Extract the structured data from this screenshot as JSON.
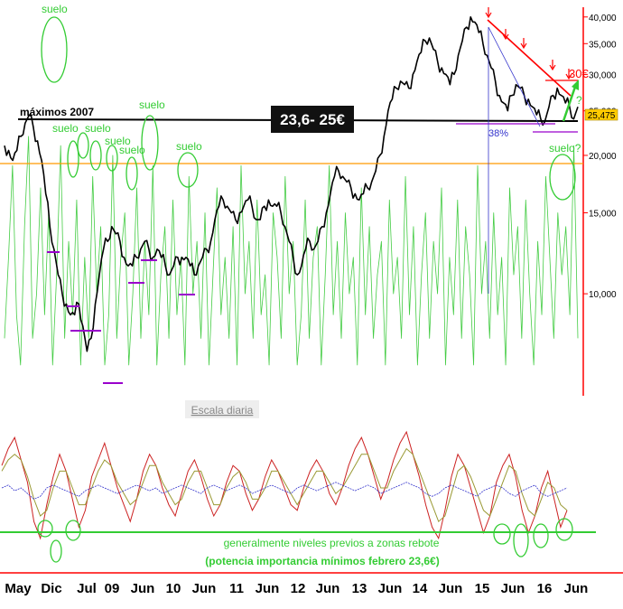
{
  "chart_data": {
    "type": "line",
    "title": "",
    "scale_label": "Escala diaria",
    "y_axis": {
      "position": "right",
      "scale": "log",
      "ticks": [
        "40,000",
        "35,000",
        "30,000",
        "25,000",
        "20,000",
        "15,000",
        "10,000"
      ],
      "tick_values": [
        40,
        35,
        30,
        25,
        20,
        15,
        10
      ],
      "range": [
        6,
        42
      ]
    },
    "x_axis": {
      "tick_labels": [
        "May",
        "Dic",
        "Jul",
        "09",
        "Jun",
        "10",
        "Jun",
        "11",
        "Jun",
        "12",
        "Jun",
        "13",
        "Jun",
        "14",
        "Jun",
        "15",
        "Jun",
        "16",
        "Jun"
      ]
    },
    "price_badge": "25,475",
    "series": [
      {
        "color": "#000000",
        "values": [
          21,
          20.5,
          19.5,
          20.5,
          22,
          23.5,
          24.5,
          23,
          21.5,
          19.5,
          16.5,
          14,
          12.5,
          11,
          10,
          9.5,
          9,
          9,
          9.5,
          8.5,
          7.5,
          8,
          9.5,
          11,
          12.5,
          13,
          14,
          13.5,
          13,
          12,
          11.5,
          11.5,
          12,
          12.5,
          13,
          12.5,
          12,
          12.5,
          12,
          11.5,
          11,
          11.5,
          12,
          12,
          12,
          11.5,
          11,
          11.5,
          12,
          12.5,
          13,
          14.5,
          15.5,
          16,
          15.5,
          15,
          14.5,
          15,
          15.5,
          16,
          15.5,
          14.5,
          14.5,
          15.5,
          16,
          15.5,
          15.5,
          15,
          14,
          13,
          12,
          11,
          11.5,
          12.5,
          13,
          12.5,
          13,
          14,
          15,
          16.5,
          18,
          18.5,
          18,
          17.5,
          17,
          16.5,
          16,
          16.5,
          17,
          17.5,
          18.5,
          20,
          22,
          25,
          26.5,
          28,
          29,
          28.5,
          28,
          30,
          32,
          33.5,
          35.5,
          36,
          34,
          32,
          31,
          30,
          28.5,
          30,
          33,
          35.5,
          38,
          40,
          39,
          37,
          35,
          33,
          31,
          29,
          27,
          26,
          25,
          27,
          28.5,
          28,
          27,
          26.5,
          25.5,
          24.5,
          24,
          23.7,
          25.5,
          27,
          28,
          27,
          26,
          25.5,
          24,
          25.5
        ]
      },
      {
        "color": "#44cc44",
        "values": [
          8,
          12,
          19,
          9,
          7,
          14,
          22,
          8,
          10,
          17,
          9,
          15,
          7,
          11,
          21,
          8,
          13,
          9,
          16,
          7,
          12,
          8,
          18,
          10,
          14,
          7,
          9,
          20,
          8,
          12,
          15,
          7,
          10,
          17,
          8,
          13,
          9,
          19,
          7,
          11,
          14,
          8,
          16,
          9,
          12,
          7,
          18,
          10,
          13,
          8,
          15,
          7,
          11,
          17,
          9,
          12,
          8,
          14,
          7,
          19,
          10,
          13,
          8,
          16,
          9,
          11,
          7,
          15,
          12,
          8,
          18,
          10,
          13,
          7,
          9,
          16,
          8,
          12,
          14,
          7,
          11,
          19,
          9,
          13,
          8,
          15,
          10,
          12,
          7,
          17,
          9,
          14,
          8,
          11,
          13,
          7,
          16,
          10,
          12,
          8,
          18,
          9,
          14,
          7,
          11,
          15,
          8,
          13,
          10,
          17,
          7,
          12,
          9,
          16,
          8,
          14,
          11,
          7,
          19,
          10,
          13,
          8,
          15,
          9,
          12,
          7,
          17,
          11,
          14,
          8,
          16,
          10,
          7,
          13,
          9,
          18,
          12,
          8,
          15,
          11,
          14,
          9,
          21,
          8
        ]
      }
    ],
    "oscillator": {
      "series": [
        {
          "color": "#cc2222",
          "values": [
            0.4,
            0.7,
            0.9,
            0.5,
            0.1,
            -0.6,
            -0.9,
            -0.3,
            0.2,
            0.6,
            0.3,
            -0.2,
            -0.7,
            -0.4,
            0.2,
            0.5,
            0.8,
            0.4,
            0,
            -0.3,
            -0.6,
            -0.2,
            0.3,
            0.6,
            0.4,
            0,
            -0.3,
            -0.5,
            -0.1,
            0.3,
            0.5,
            0.2,
            -0.2,
            -0.5,
            -0.3,
            0.1,
            0.4,
            0.3,
            -0.1,
            -0.4,
            -0.2,
            0.2,
            0.5,
            0.3,
            0,
            -0.3,
            -0.4,
            0,
            0.3,
            0.5,
            0.3,
            -0.1,
            -0.3,
            0,
            0.4,
            0.7,
            0.9,
            0.6,
            0.2,
            -0.2,
            0.1,
            0.5,
            0.8,
            1,
            0.6,
            0.2,
            -0.3,
            -0.7,
            -0.9,
            -0.4,
            0.2,
            0.6,
            0.4,
            0,
            -0.4,
            -0.8,
            -0.5,
            0.1,
            0.4,
            0.6,
            0.2,
            -0.4,
            -0.8,
            -0.5,
            0,
            0.3,
            -0.2,
            -0.7,
            -0.4
          ]
        },
        {
          "color": "#999933",
          "values": [
            0.3,
            0.5,
            0.6,
            0.5,
            0.2,
            -0.2,
            -0.5,
            -0.4,
            0,
            0.3,
            0.3,
            0,
            -0.3,
            -0.3,
            0,
            0.3,
            0.5,
            0.4,
            0.1,
            -0.1,
            -0.3,
            -0.2,
            0.1,
            0.4,
            0.4,
            0.1,
            -0.1,
            -0.3,
            -0.2,
            0.1,
            0.3,
            0.3,
            0,
            -0.3,
            -0.3,
            0,
            0.2,
            0.3,
            0.1,
            -0.2,
            -0.2,
            0,
            0.3,
            0.3,
            0.1,
            -0.1,
            -0.3,
            -0.1,
            0.1,
            0.3,
            0.3,
            0.1,
            -0.1,
            0,
            0.2,
            0.4,
            0.6,
            0.6,
            0.3,
            0,
            0,
            0.3,
            0.5,
            0.7,
            0.6,
            0.3,
            0,
            -0.3,
            -0.6,
            -0.5,
            -0.1,
            0.3,
            0.4,
            0.2,
            -0.1,
            -0.4,
            -0.5,
            -0.2,
            0.1,
            0.4,
            0.3,
            -0.1,
            -0.4,
            -0.5,
            -0.2,
            0.1,
            0,
            -0.3,
            -0.4
          ]
        },
        {
          "color": "#3333cc",
          "values": [
            0,
            0.05,
            -0.05,
            0,
            -0.1,
            -0.2,
            -0.15,
            0,
            0.05,
            0,
            -0.05,
            -0.1,
            -0.15,
            -0.05,
            0,
            0.05,
            0,
            -0.05,
            -0.1,
            -0.05,
            0,
            0.05,
            0,
            -0.05,
            0,
            -0.1,
            -0.05,
            0,
            0.05,
            0,
            -0.05,
            -0.1,
            0,
            0.05,
            0,
            -0.05,
            0,
            0.05,
            0,
            -0.1,
            -0.05,
            0,
            0.05,
            0,
            -0.05,
            -0.1,
            0,
            0.05,
            0,
            -0.05,
            0,
            0.05,
            0.1,
            0.05,
            0,
            -0.05,
            0,
            0.05,
            0,
            -0.1,
            -0.05,
            0,
            0.05,
            0.1,
            0.05,
            0,
            -0.1,
            -0.15,
            -0.1,
            0,
            0.05,
            0,
            -0.05,
            -0.1,
            -0.15,
            -0.05,
            0,
            0.05,
            0,
            -0.1,
            -0.15,
            -0.05,
            0,
            0.05,
            -0.1,
            -0.15,
            -0.1,
            -0.05,
            0
          ]
        }
      ]
    },
    "annotations": {
      "max2007": "máximos 2007",
      "zone": "23,6- 25€",
      "pct": "38%",
      "target": "30€",
      "question": "?",
      "suelo": "suelo",
      "suelo_q": "suelo?",
      "osc_note_1": "generalmente niveles previos a zonas rebote",
      "osc_note_2": "(potencia importancia mínimos febrero 23,6€)"
    },
    "colors": {
      "price": "#000000",
      "volume": "#44cc44",
      "resistance_line": "#ff0000",
      "support_line": "#000000",
      "orange_line": "#ff9900",
      "magenta_marks": "#9900cc",
      "circles": "#33cc33",
      "axis": "#ff0000"
    }
  }
}
